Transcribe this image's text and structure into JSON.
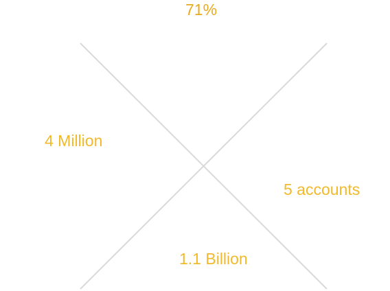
{
  "stats": {
    "top": "71%",
    "left": "4 Million",
    "right": "5 accounts",
    "bottom": "1.1 Billion"
  },
  "colors": {
    "accent": "#f2b92b",
    "line": "#d9d9d9"
  }
}
